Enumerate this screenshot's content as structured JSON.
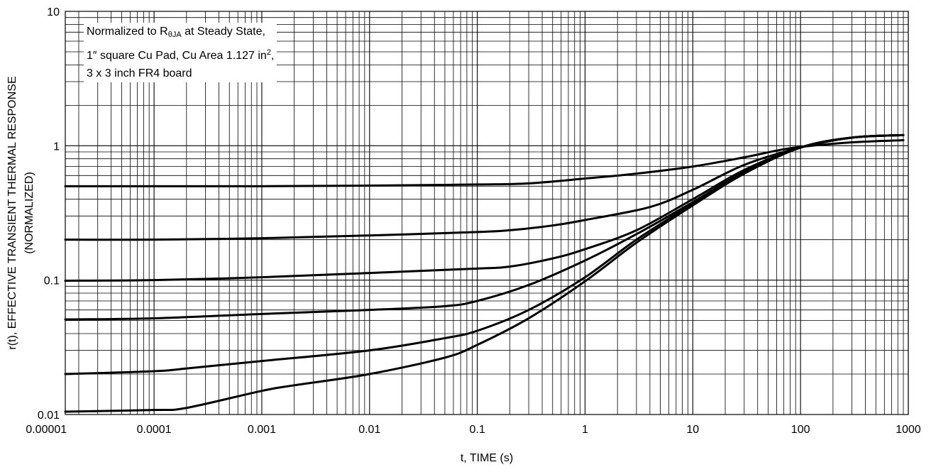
{
  "chart_data": {
    "type": "line",
    "xlabel": "t, TIME (s)",
    "ylabel": "r(t), EFFECTIVE TRANSIENT THERMAL RESPONSE",
    "ylabel_sub": "(NORMALIZED)",
    "x_scale": "log",
    "y_scale": "log",
    "xlim": [
      1.5e-05,
      1000
    ],
    "ylim": [
      0.01,
      10
    ],
    "grid": true,
    "x_tick_labels": [
      "0.00001",
      "0.0001",
      "0.001",
      "0.01",
      "0.1",
      "1",
      "10",
      "100",
      "1000"
    ],
    "x_tick_values": [
      1e-05,
      0.0001,
      0.001,
      0.01,
      0.1,
      1,
      10,
      100,
      1000
    ],
    "y_tick_labels": [
      "0.01",
      "0.1",
      "1",
      "10"
    ],
    "y_tick_values": [
      0.01,
      0.1,
      1,
      10
    ],
    "annotation": {
      "line1_pre": "Normalized to R",
      "line1_sub": "θJA",
      "line1_post": " at Steady State,",
      "line2_pre": "1″ square Cu Pad, Cu Area 1.127 in",
      "line2_sup": "2",
      "line2_post": ",",
      "line3": "3 x 3 inch FR4 board"
    },
    "line_color": "#000000",
    "series": [
      {
        "x": [
          1.5e-05,
          0.0001,
          0.001,
          0.01,
          0.1,
          0.3,
          1,
          3,
          10,
          30,
          60,
          100,
          300,
          900
        ],
        "y": [
          0.5,
          0.5,
          0.5,
          0.505,
          0.515,
          0.525,
          0.57,
          0.62,
          0.7,
          0.82,
          0.92,
          0.98,
          1.06,
          1.1
        ]
      },
      {
        "x": [
          1.5e-05,
          0.0001,
          0.001,
          0.01,
          0.1,
          0.2,
          0.5,
          1,
          4,
          10,
          30,
          100,
          300,
          900
        ],
        "y": [
          0.2,
          0.2,
          0.205,
          0.215,
          0.228,
          0.235,
          0.255,
          0.28,
          0.35,
          0.47,
          0.72,
          0.97,
          1.15,
          1.2
        ]
      },
      {
        "x": [
          1.5e-05,
          0.0001,
          0.001,
          0.01,
          0.1,
          0.2,
          0.5,
          1,
          3,
          10,
          30,
          100,
          300,
          900
        ],
        "y": [
          0.099,
          0.1,
          0.105,
          0.113,
          0.122,
          0.126,
          0.145,
          0.17,
          0.235,
          0.4,
          0.66,
          0.97,
          1.15,
          1.2
        ]
      },
      {
        "x": [
          1.5e-05,
          0.0001,
          0.001,
          0.01,
          0.05,
          0.1,
          0.3,
          1,
          3,
          10,
          30,
          100,
          300,
          900
        ],
        "y": [
          0.051,
          0.052,
          0.056,
          0.06,
          0.064,
          0.07,
          0.092,
          0.14,
          0.22,
          0.38,
          0.64,
          0.97,
          1.15,
          1.2
        ]
      },
      {
        "x": [
          1.5e-05,
          0.0001,
          0.0002,
          0.001,
          0.01,
          0.05,
          0.1,
          0.3,
          1,
          3,
          10,
          30,
          100,
          300,
          900
        ],
        "y": [
          0.02,
          0.021,
          0.022,
          0.025,
          0.03,
          0.037,
          0.042,
          0.06,
          0.105,
          0.2,
          0.37,
          0.63,
          0.97,
          1.15,
          1.2
        ]
      },
      {
        "x": [
          1.5e-05,
          0.0001,
          0.0002,
          0.001,
          0.002,
          0.01,
          0.05,
          0.1,
          0.3,
          1,
          3,
          10,
          30,
          100,
          300,
          900
        ],
        "y": [
          0.0105,
          0.0108,
          0.0112,
          0.015,
          0.0165,
          0.02,
          0.0265,
          0.033,
          0.052,
          0.098,
          0.19,
          0.36,
          0.62,
          0.97,
          1.15,
          1.2
        ]
      }
    ]
  }
}
